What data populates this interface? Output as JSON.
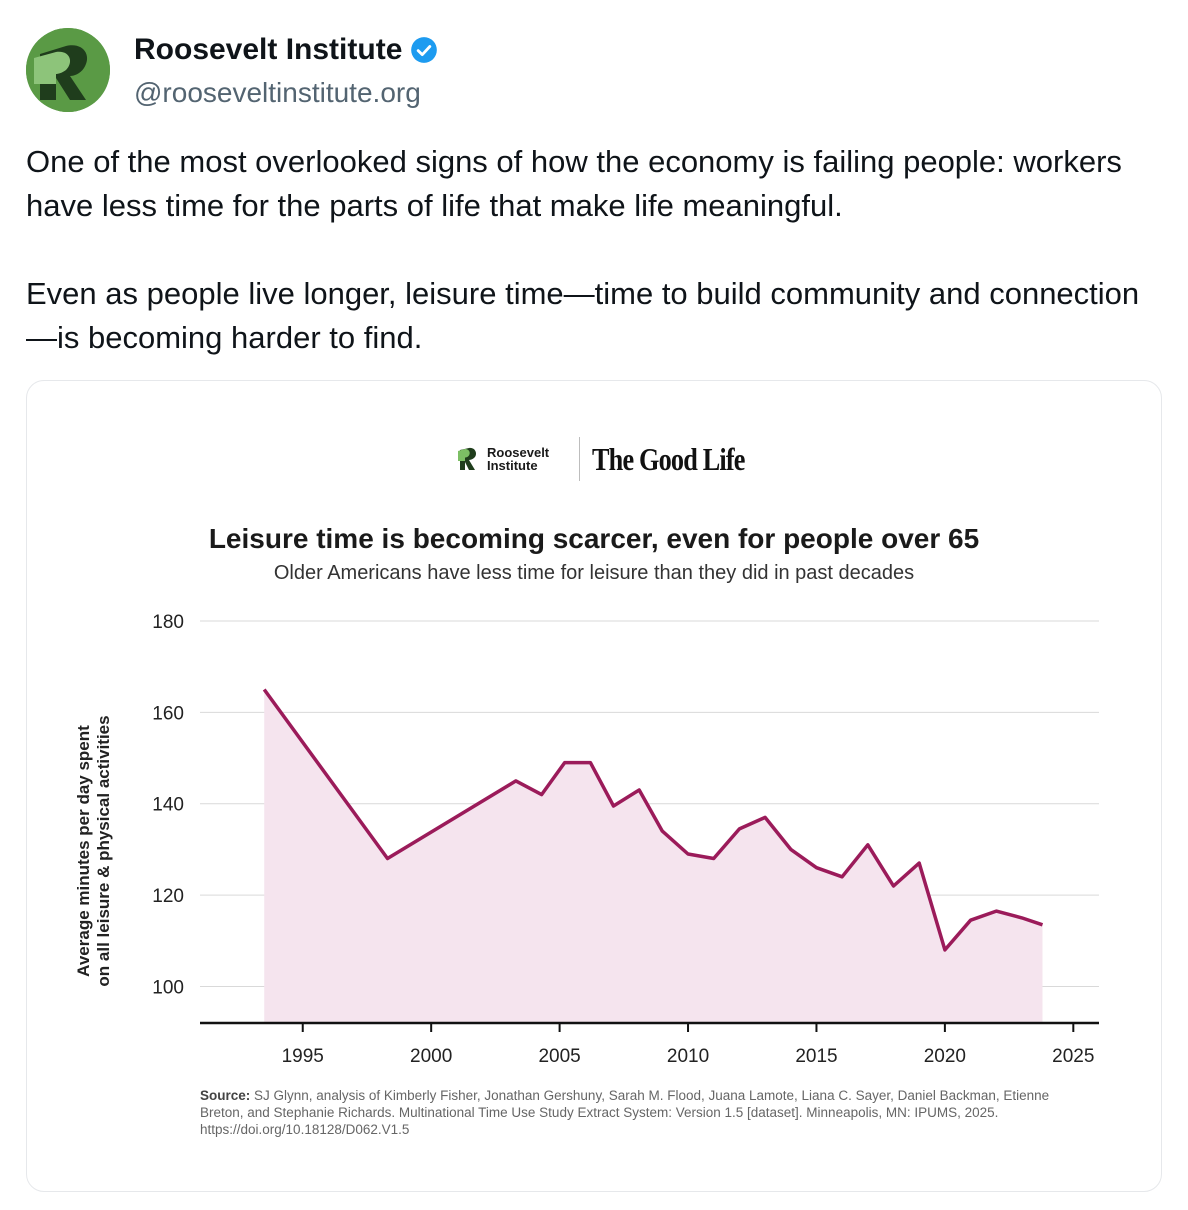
{
  "post": {
    "author_name": "Roosevelt Institute",
    "handle": "@rooseveltinstitute.org",
    "verified_icon": "verified-badge-icon",
    "paragraphs": [
      "One of the most overlooked signs of how the economy is failing people: workers have less time for the parts of life that make life meaningful.",
      "Even as people live longer, leisure time—time to build community and connection—is becoming harder to find."
    ]
  },
  "card": {
    "brand_name_line1": "Roosevelt",
    "brand_name_line2": "Institute",
    "brand_series": "The Good Life",
    "source_label": "Source:",
    "source_text": "SJ Glynn, analysis of Kimberly Fisher, Jonathan Gershuny, Sarah M. Flood, Juana Lamote, Liana C. Sayer, Daniel Backman, Etienne Breton, and Stephanie Richards. Multinational Time Use Study Extract System: Version 1.5 [dataset]. Minneapolis, MN: IPUMS, 2025. https://doi.org/10.18128/D062.V1.5"
  },
  "colors": {
    "line": "#9b1b5a",
    "fill": "#f5e4ee",
    "avatar": "#5a9a45",
    "verified": "#1d9bf0"
  },
  "chart_data": {
    "type": "area",
    "title": "Leisure time is becoming scarcer, even for people over 65",
    "subtitle": "Older Americans have less time for leisure than they did in past decades",
    "ylabel": "Average minutes per day spent on all leisure & physical activities",
    "ylabel_line1": "Average minutes per day spent",
    "ylabel_line2": "on all leisure & physical activities",
    "xlabel": "",
    "xlim": [
      1991,
      2026
    ],
    "ylim": [
      92,
      180
    ],
    "yticks": [
      100,
      120,
      140,
      160,
      180
    ],
    "xticks": [
      1995,
      2000,
      2005,
      2010,
      2015,
      2020,
      2025
    ],
    "grid": true,
    "x": [
      1993.5,
      1998.3,
      2003.3,
      2004.3,
      2005.2,
      2006.2,
      2007.1,
      2008.1,
      2009.0,
      2010.0,
      2011.0,
      2012.0,
      2013.0,
      2014.0,
      2015.0,
      2016.0,
      2017.0,
      2018.0,
      2019.0,
      2020.0,
      2021.0,
      2022.0,
      2023.0,
      2023.8
    ],
    "y": [
      165,
      128,
      145,
      142,
      149,
      149,
      139.5,
      143,
      134,
      129,
      128,
      134.5,
      137,
      130,
      126,
      124,
      131,
      122,
      127,
      108,
      114.5,
      116.5,
      115,
      113.5
    ]
  }
}
